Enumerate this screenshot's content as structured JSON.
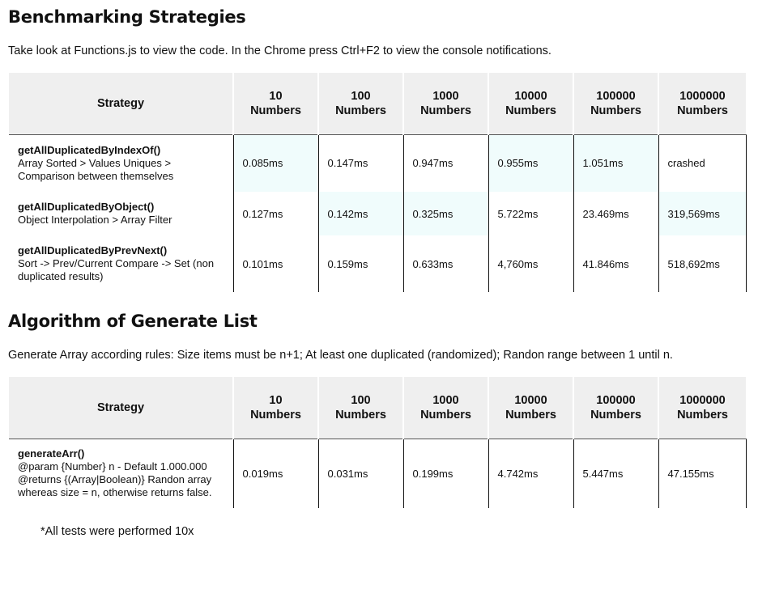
{
  "section1": {
    "title": "Benchmarking Strategies",
    "description": "Take look at Functions.js to view the code. In the Chrome press Ctrl+F2 to view the console notifications.",
    "headers": [
      "Strategy",
      "10\nNumbers",
      "100\nNumbers",
      "1000\nNumbers",
      "10000\nNumbers",
      "100000\nNumbers",
      "1000000\nNumbers"
    ],
    "rows": [
      {
        "name": "getAllDuplicatedByIndexOf()",
        "desc": "Array Sorted > Values Uniques >\nComparison between themselves",
        "values": [
          "0.085ms",
          "0.147ms",
          "0.947ms",
          "0.955ms",
          "1.051ms",
          "crashed"
        ]
      },
      {
        "name": "getAllDuplicatedByObject()",
        "desc": "Object Interpolation > Array Filter",
        "values": [
          "0.127ms",
          "0.142ms",
          "0.325ms",
          "5.722ms",
          "23.469ms",
          "319,569ms"
        ]
      },
      {
        "name": "getAllDuplicatedByPrevNext()",
        "desc": "Sort -> Prev/Current Compare -> Set (non\nduplicated results)",
        "values": [
          "0.101ms",
          "0.159ms",
          "0.633ms",
          "4,760ms",
          "41.846ms",
          "518,692ms"
        ]
      }
    ]
  },
  "section2": {
    "title": "Algorithm of Generate List",
    "description": "Generate Array according rules: Size items must be n+1; At least one duplicated (randomized); Randon range between 1 until n.",
    "headers": [
      "Strategy",
      "10\nNumbers",
      "100\nNumbers",
      "1000\nNumbers",
      "10000\nNumbers",
      "100000\nNumbers",
      "1000000\nNumbers"
    ],
    "rows": [
      {
        "name": "generateArr()",
        "desc": "@param {Number} n - Default 1.000.000\n@returns {(Array|Boolean)} Randon array\nwhereas size = n, otherwise returns false.",
        "values": [
          "0.019ms",
          "0.031ms",
          "0.199ms",
          "4.742ms",
          "5.447ms",
          "47.155ms"
        ]
      }
    ]
  },
  "footnote": "*All tests were performed 10x"
}
